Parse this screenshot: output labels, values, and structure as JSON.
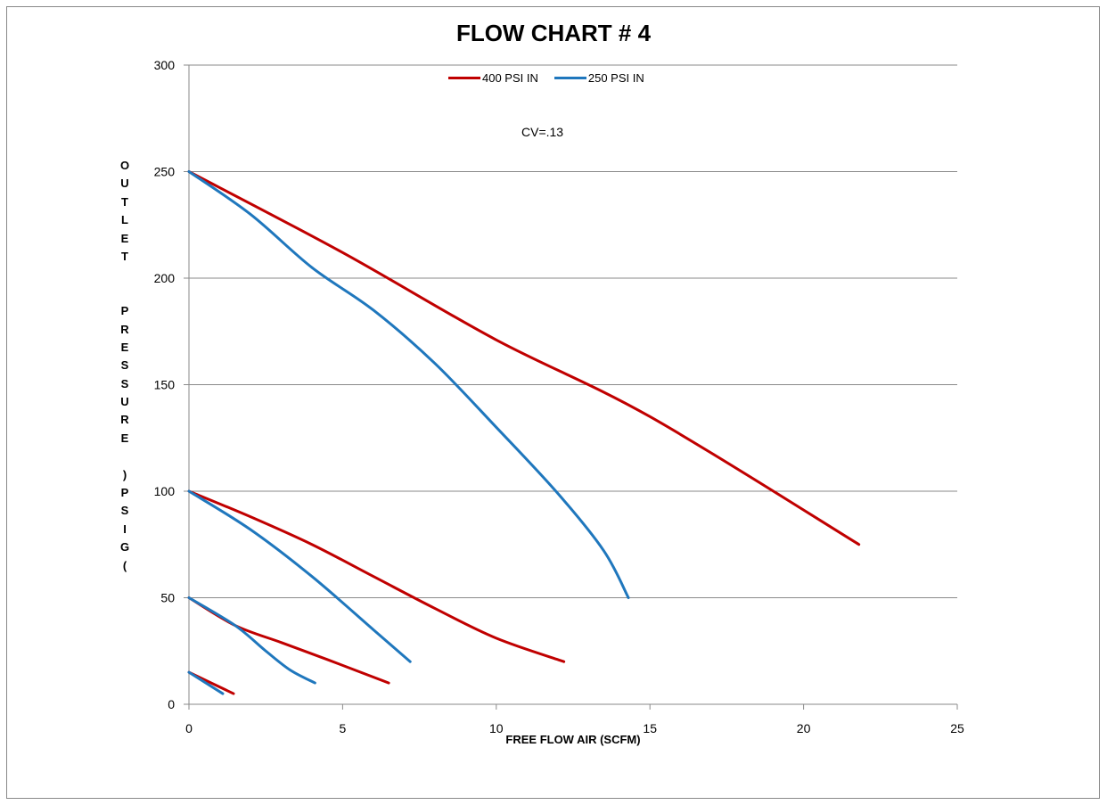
{
  "chart_data": {
    "type": "line",
    "title": "FLOW CHART # 4",
    "xlabel": "FREE FLOW AIR (SCFM)",
    "ylabel": "OUTLET PRESSURE (PSIG)",
    "ylabel_text": "OUTLET  PRESSURE )PSIG(",
    "annotation": "CV=.13",
    "xlim": [
      0,
      25
    ],
    "ylim": [
      0,
      300
    ],
    "xticks": [
      "0",
      "5",
      "10",
      "15",
      "20",
      "25"
    ],
    "yticks": [
      "0",
      "50",
      "100",
      "150",
      "200",
      "250",
      "300"
    ],
    "grid": "horizontal",
    "legend_position": "top",
    "legend": [
      {
        "name": "400 PSI IN",
        "color": "#c00000"
      },
      {
        "name": "250 PSI IN",
        "color": "#1f77bd"
      }
    ],
    "series": [
      {
        "name": "400 PSI IN",
        "color": "#c00000",
        "points": [
          [
            0,
            250
          ],
          [
            5,
            212
          ],
          [
            10,
            171
          ],
          [
            15,
            135
          ],
          [
            21.8,
            75
          ]
        ]
      },
      {
        "name": "400 PSI IN",
        "color": "#c00000",
        "points": [
          [
            0,
            100
          ],
          [
            2,
            88
          ],
          [
            4,
            75
          ],
          [
            6,
            60
          ],
          [
            8,
            45
          ],
          [
            10,
            31
          ],
          [
            12.2,
            20
          ]
        ]
      },
      {
        "name": "400 PSI IN",
        "color": "#c00000",
        "points": [
          [
            0,
            50
          ],
          [
            1.5,
            37
          ],
          [
            3,
            29
          ],
          [
            4.5,
            21
          ],
          [
            6.5,
            10
          ]
        ]
      },
      {
        "name": "400 PSI IN",
        "color": "#c00000",
        "points": [
          [
            0,
            15
          ],
          [
            1.45,
            5
          ]
        ]
      },
      {
        "name": "250 PSI IN",
        "color": "#1f77bd",
        "points": [
          [
            0,
            250
          ],
          [
            2,
            230
          ],
          [
            4,
            205
          ],
          [
            6,
            185
          ],
          [
            8,
            160
          ],
          [
            10,
            130
          ],
          [
            12,
            99
          ],
          [
            13.5,
            72
          ],
          [
            14.3,
            50
          ]
        ]
      },
      {
        "name": "250 PSI IN",
        "color": "#1f77bd",
        "points": [
          [
            0,
            100
          ],
          [
            2,
            82
          ],
          [
            4,
            60
          ],
          [
            6,
            35
          ],
          [
            7.2,
            20
          ]
        ]
      },
      {
        "name": "250 PSI IN",
        "color": "#1f77bd",
        "points": [
          [
            0,
            50
          ],
          [
            1.5,
            37
          ],
          [
            2.5,
            25
          ],
          [
            3.3,
            16
          ],
          [
            4.1,
            10
          ]
        ]
      },
      {
        "name": "250 PSI IN",
        "color": "#1f77bd",
        "points": [
          [
            0,
            15
          ],
          [
            1.1,
            5
          ]
        ]
      }
    ]
  }
}
